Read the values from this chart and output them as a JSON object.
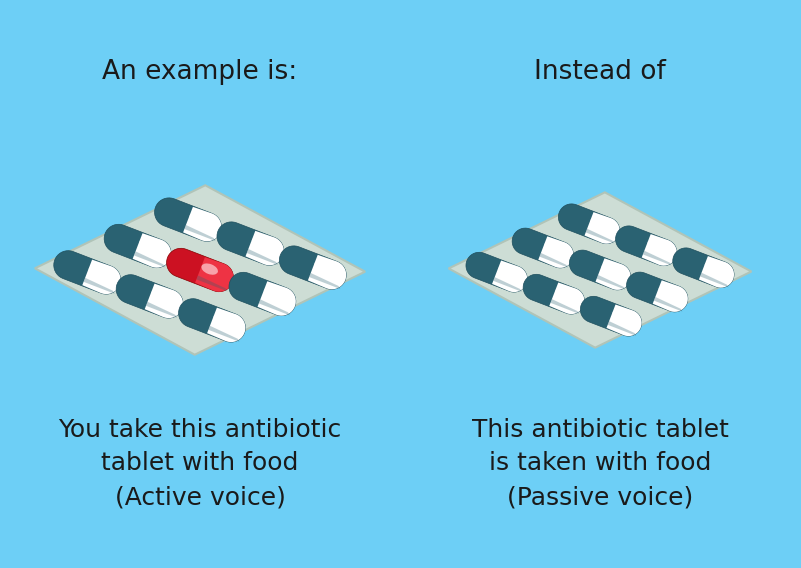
{
  "background_color": "#6dcff6",
  "title_left": "An example is:",
  "title_right": "Instead of",
  "caption_left": "You take this antibiotic\ntablet with food\n(Active voice)",
  "caption_right": "This antibiotic tablet\nis taken with food\n(Passive voice)",
  "title_fontsize": 19,
  "caption_fontsize": 18,
  "text_color": "#1a1a1a",
  "pack_bg_color": "#cdddd5",
  "pack_edge_color": "#b0c4b8",
  "capsule_dark": "#2a6272",
  "capsule_dark2": "#1e4f5e",
  "capsule_light": "#e8eef0",
  "capsule_white": "#ffffff",
  "capsule_red": "#cc1122",
  "capsule_red2": "#aa0011"
}
